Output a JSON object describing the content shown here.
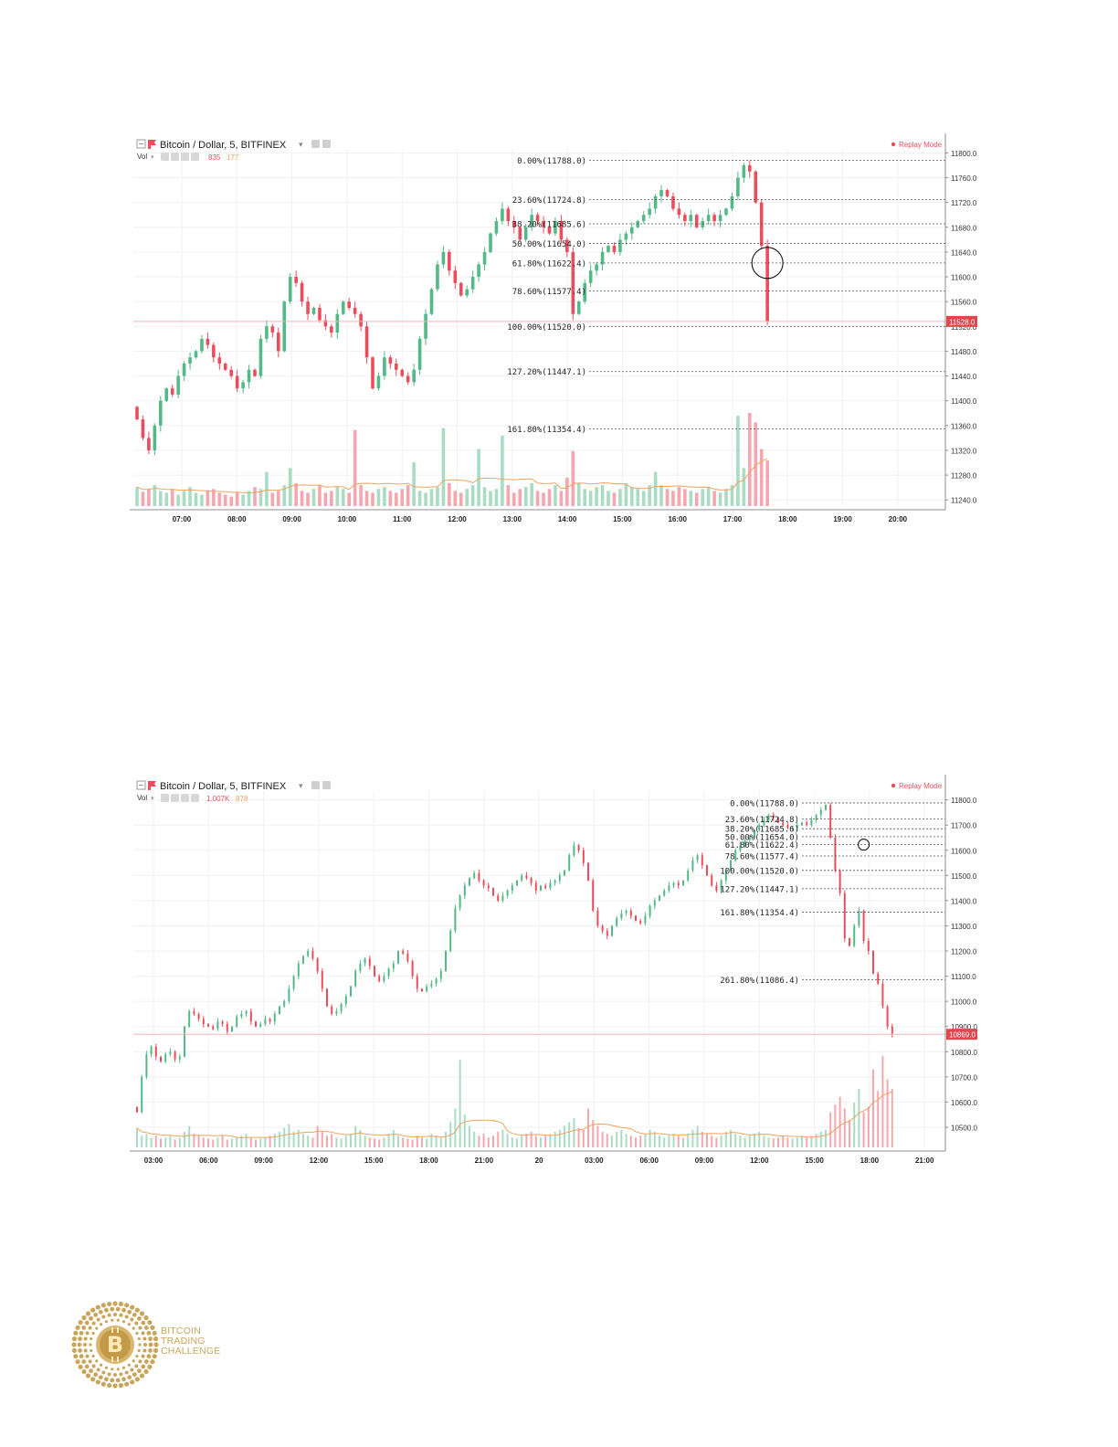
{
  "colors": {
    "up": "#53b987",
    "down": "#eb4d5c",
    "up_volume": "#a9dcc3",
    "down_volume": "#f5a6ae",
    "fib_line": "#555555",
    "price_tag": "#e0474c",
    "ma_line": "#f0a35e",
    "grid": "#f1f1f1",
    "gold": "#c9a55a"
  },
  "logo": {
    "icon": "bitcoin-coin-icon",
    "lines": [
      "BITCOIN",
      "TRADING",
      "CHALLENGE"
    ]
  },
  "chart_data": [
    {
      "type": "candlestick",
      "title": "Bitcoin / Dollar, 5, BITFINEX",
      "volume_label": "Vol",
      "volume_values": [
        "835",
        "177"
      ],
      "replay_label": "Replay Mode",
      "current_price_label": "11528.0",
      "current_price": 11528,
      "ylim": [
        11230,
        11805
      ],
      "y_ticks": [
        "11800.0",
        "11760.0",
        "11720.0",
        "11680.0",
        "11640.0",
        "11600.0",
        "11560.0",
        "11520.0",
        "11480.0",
        "11440.0",
        "11400.0",
        "11360.0",
        "11320.0",
        "11280.0",
        "11240.0"
      ],
      "x_ticks": [
        "07:00",
        "08:00",
        "09:00",
        "10:00",
        "11:00",
        "12:00",
        "13:00",
        "14:00",
        "15:00",
        "16:00",
        "17:00",
        "18:00",
        "19:00",
        "20:00"
      ],
      "fib_levels": [
        {
          "label": "0.00%(11788.0)",
          "price": 11788
        },
        {
          "label": "23.60%(11724.8)",
          "price": 11724.8
        },
        {
          "label": "38.20%(11685.6)",
          "price": 11685.6
        },
        {
          "label": "50.00%(11654.0)",
          "price": 11654
        },
        {
          "label": "61.80%(11622.4)",
          "price": 11622.4
        },
        {
          "label": "78.60%(11577.4)",
          "price": 11577.4
        },
        {
          "label": "100.00%(11520.0)",
          "price": 11520
        },
        {
          "label": "127.20%(11447.1)",
          "price": 11447.1
        },
        {
          "label": "161.80%(11354.4)",
          "price": 11354.4
        }
      ],
      "closes": [
        11370,
        11340,
        11320,
        11360,
        11400,
        11420,
        11410,
        11440,
        11460,
        11470,
        11480,
        11500,
        11490,
        11470,
        11460,
        11450,
        11440,
        11420,
        11430,
        11450,
        11440,
        11500,
        11520,
        11510,
        11480,
        11560,
        11600,
        11590,
        11560,
        11540,
        11550,
        11530,
        11520,
        11510,
        11540,
        11560,
        11550,
        11540,
        11520,
        11470,
        11420,
        11440,
        11470,
        11460,
        11450,
        11440,
        11430,
        11450,
        11500,
        11540,
        11580,
        11620,
        11640,
        11610,
        11590,
        11570,
        11580,
        11600,
        11620,
        11640,
        11670,
        11690,
        11710,
        11690,
        11680,
        11660,
        11680,
        11700,
        11690,
        11680,
        11670,
        11690,
        11660,
        11640,
        11540,
        11560,
        11590,
        11610,
        11620,
        11640,
        11650,
        11640,
        11660,
        11670,
        11680,
        11690,
        11700,
        11710,
        11730,
        11740,
        11730,
        11710,
        11700,
        11690,
        11700,
        11680,
        11690,
        11700,
        11690,
        11700,
        11710,
        11730,
        11760,
        11780,
        11770,
        11720,
        11650,
        11528
      ],
      "volumes": [
        20,
        15,
        18,
        22,
        16,
        14,
        18,
        12,
        16,
        20,
        14,
        12,
        16,
        18,
        14,
        12,
        10,
        14,
        12,
        16,
        20,
        18,
        36,
        14,
        16,
        22,
        40,
        24,
        16,
        14,
        18,
        22,
        14,
        16,
        20,
        18,
        14,
        80,
        22,
        16,
        14,
        18,
        20,
        16,
        14,
        18,
        22,
        46,
        16,
        14,
        18,
        20,
        82,
        24,
        16,
        14,
        18,
        22,
        60,
        20,
        16,
        18,
        74,
        22,
        14,
        18,
        20,
        24,
        16,
        14,
        18,
        22,
        16,
        30,
        58,
        24,
        18,
        16,
        20,
        22,
        16,
        14,
        18,
        24,
        20,
        18,
        16,
        22,
        36,
        22,
        18,
        16,
        20,
        18,
        16,
        14,
        18,
        20,
        16,
        14,
        18,
        22,
        95,
        40,
        98,
        88,
        60,
        48
      ]
    },
    {
      "type": "candlestick",
      "title": "Bitcoin / Dollar, 5, BITFINEX",
      "volume_label": "Vol",
      "volume_values": [
        "1.007K",
        "878"
      ],
      "replay_label": "Replay Mode",
      "current_price_label": "10869.0",
      "current_price": 10869,
      "ylim": [
        10420,
        11835
      ],
      "y_ticks": [
        "11800.0",
        "11700.0",
        "11600.0",
        "11500.0",
        "11400.0",
        "11300.0",
        "11200.0",
        "11100.0",
        "11000.0",
        "10900.0",
        "10800.0",
        "10700.0",
        "10600.0",
        "10500.0"
      ],
      "x_ticks": [
        "03:00",
        "06:00",
        "09:00",
        "12:00",
        "15:00",
        "18:00",
        "21:00",
        "20",
        "03:00",
        "06:00",
        "09:00",
        "12:00",
        "15:00",
        "18:00",
        "21:00"
      ],
      "fib_levels": [
        {
          "label": "0.00%(11788.0)",
          "price": 11788
        },
        {
          "label": "23.60%(11724.8)",
          "price": 11724.8
        },
        {
          "label": "38.20%(11685.6)",
          "price": 11685.6
        },
        {
          "label": "50.00%(11654.0)",
          "price": 11654
        },
        {
          "label": "61.80%(11622.4)",
          "price": 11622.4
        },
        {
          "label": "78.60%(11577.4)",
          "price": 11577.4
        },
        {
          "label": "100.00%(11520.0)",
          "price": 11520
        },
        {
          "label": "127.20%(11447.1)",
          "price": 11447.1
        },
        {
          "label": "161.80%(11354.4)",
          "price": 11354.4
        },
        {
          "label": "261.80%(11086.4)",
          "price": 11086.4
        }
      ],
      "closes": [
        10560,
        10700,
        10790,
        10820,
        10780,
        10760,
        10790,
        10800,
        10770,
        10780,
        10900,
        10960,
        10950,
        10930,
        10910,
        10900,
        10890,
        10920,
        10910,
        10880,
        10900,
        10940,
        10950,
        10960,
        10920,
        10900,
        10910,
        10930,
        10920,
        10950,
        10980,
        11000,
        11050,
        11100,
        11150,
        11180,
        11200,
        11170,
        11120,
        11050,
        10980,
        10950,
        10960,
        10990,
        11020,
        11060,
        11120,
        11150,
        11170,
        11140,
        11100,
        11080,
        11100,
        11130,
        11150,
        11200,
        11190,
        11160,
        11100,
        11050,
        11040,
        11060,
        11070,
        11090,
        11120,
        11200,
        11280,
        11370,
        11420,
        11460,
        11490,
        11510,
        11480,
        11460,
        11450,
        11420,
        11400,
        11420,
        11440,
        11460,
        11480,
        11500,
        11490,
        11470,
        11440,
        11460,
        11450,
        11470,
        11480,
        11500,
        11520,
        11580,
        11620,
        11600,
        11550,
        11480,
        11360,
        11300,
        11280,
        11260,
        11300,
        11330,
        11350,
        11360,
        11340,
        11320,
        11310,
        11340,
        11380,
        11400,
        11420,
        11440,
        11460,
        11470,
        11460,
        11480,
        11520,
        11560,
        11580,
        11540,
        11500,
        11460,
        11440,
        11480,
        11520,
        11560,
        11600,
        11620,
        11640,
        11650,
        11680,
        11700,
        11720,
        11740,
        11730,
        11710,
        11700,
        11690,
        11690,
        11700,
        11710,
        11700,
        11720,
        11740,
        11760,
        11780,
        11650,
        11520,
        11430,
        11250,
        11220,
        11300,
        11360,
        11240,
        11200,
        11110,
        11070,
        10980,
        10900,
        10870
      ],
      "volumes": [
        20,
        12,
        14,
        10,
        12,
        9,
        10,
        12,
        8,
        10,
        16,
        22,
        14,
        12,
        10,
        9,
        8,
        10,
        12,
        8,
        9,
        10,
        12,
        14,
        10,
        8,
        9,
        10,
        12,
        14,
        16,
        20,
        24,
        16,
        18,
        14,
        12,
        10,
        22,
        16,
        12,
        14,
        10,
        9,
        12,
        14,
        22,
        18,
        12,
        10,
        9,
        8,
        10,
        14,
        18,
        12,
        10,
        9,
        8,
        12,
        10,
        9,
        14,
        12,
        10,
        16,
        26,
        40,
        90,
        34,
        22,
        16,
        12,
        14,
        10,
        12,
        16,
        18,
        14,
        10,
        9,
        12,
        14,
        16,
        12,
        10,
        12,
        14,
        16,
        18,
        22,
        26,
        30,
        20,
        18,
        40,
        28,
        22,
        16,
        14,
        12,
        16,
        18,
        14,
        12,
        10,
        12,
        14,
        18,
        16,
        12,
        10,
        12,
        14,
        12,
        10,
        14,
        18,
        22,
        16,
        14,
        12,
        10,
        12,
        16,
        18,
        14,
        12,
        10,
        12,
        14,
        16,
        12,
        10,
        9,
        10,
        12,
        10,
        9,
        10,
        12,
        10,
        12,
        14,
        16,
        18,
        36,
        44,
        52,
        40,
        28,
        46,
        60,
        36,
        42,
        80,
        58,
        94,
        70,
        60
      ]
    }
  ]
}
